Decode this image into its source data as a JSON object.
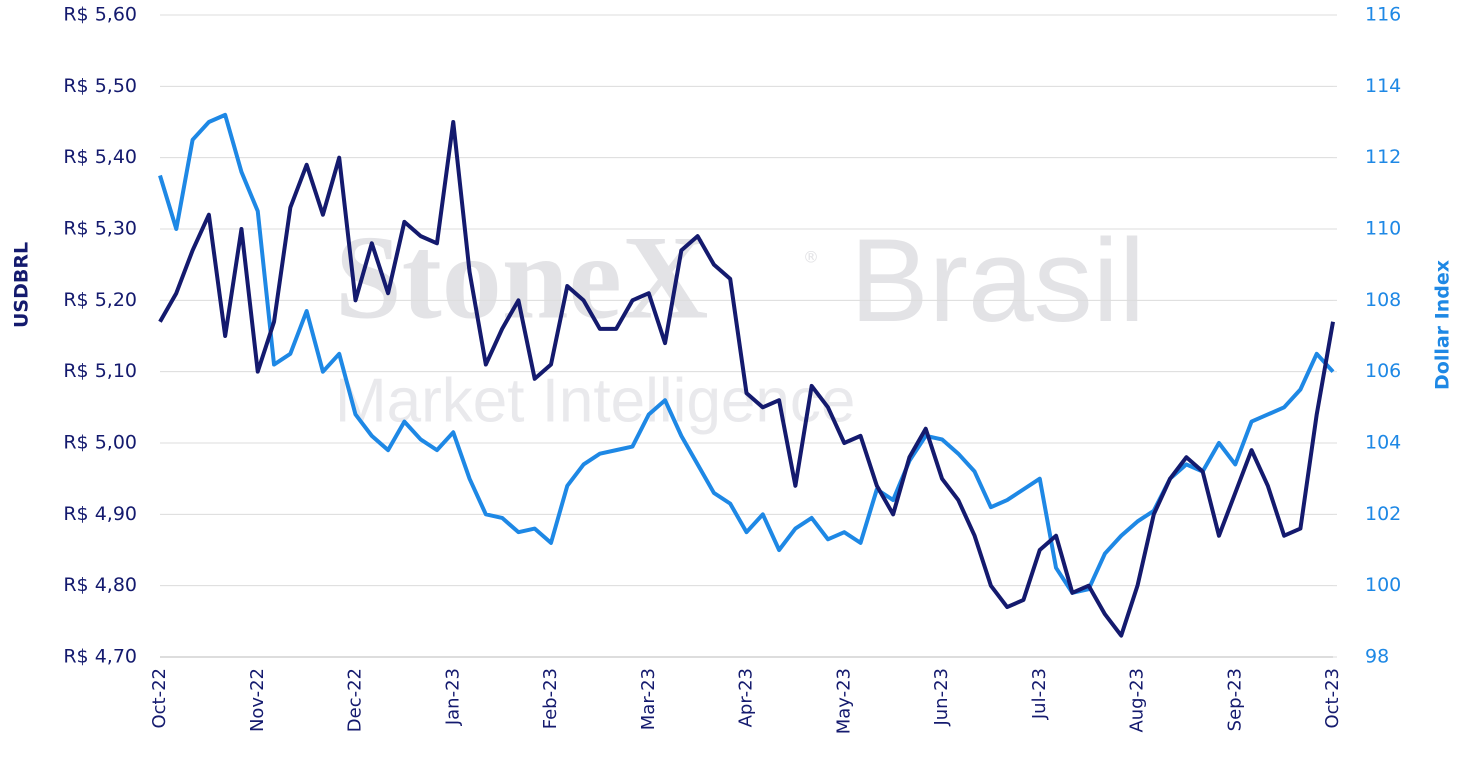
{
  "chart_data": {
    "type": "line",
    "watermark": "StoneX",
    "watermark_mark": "®",
    "watermark_brand": "Brasil",
    "watermark_subtitle": "Market Intelligence",
    "y_label": "USDBRL",
    "y2_label": "Dollar Index",
    "grid": true,
    "categories": [
      "Oct-22",
      null,
      null,
      null,
      null,
      null,
      "Nov-22",
      null,
      null,
      null,
      null,
      null,
      "Dec-22",
      null,
      null,
      null,
      null,
      null,
      "Jan-23",
      null,
      null,
      null,
      null,
      null,
      "Feb-23",
      null,
      null,
      null,
      null,
      null,
      "Mar-23",
      null,
      null,
      null,
      null,
      null,
      "Apr-23",
      null,
      null,
      null,
      null,
      null,
      "May-23",
      null,
      null,
      null,
      null,
      null,
      "Jun-23",
      null,
      null,
      null,
      null,
      null,
      "Jul-23",
      null,
      null,
      null,
      null,
      null,
      "Aug-23",
      null,
      null,
      null,
      null,
      null,
      "Sep-23",
      null,
      null,
      null,
      null,
      null,
      "Oct-23"
    ],
    "ylim": [
      4.7,
      5.6
    ],
    "yticks": [
      {
        "value": 4.7,
        "label": "R$ 4,70"
      },
      {
        "value": 4.8,
        "label": "R$ 4,80"
      },
      {
        "value": 4.9,
        "label": "R$ 4,90"
      },
      {
        "value": 5.0,
        "label": "R$ 5,00"
      },
      {
        "value": 5.1,
        "label": "R$ 5,10"
      },
      {
        "value": 5.2,
        "label": "R$ 5,20"
      },
      {
        "value": 5.3,
        "label": "R$ 5,30"
      },
      {
        "value": 5.4,
        "label": "R$ 5,40"
      },
      {
        "value": 5.5,
        "label": "R$ 5,50"
      },
      {
        "value": 5.6,
        "label": "R$ 5,60"
      }
    ],
    "y2lim": [
      98,
      116
    ],
    "y2ticks": [
      98,
      100,
      102,
      104,
      106,
      108,
      110,
      112,
      114,
      116
    ],
    "series": [
      {
        "name": "USDBRL",
        "color": "#141a6e",
        "axis": "y",
        "values": [
          5.17,
          5.21,
          5.27,
          5.32,
          5.15,
          5.3,
          5.1,
          5.17,
          5.33,
          5.39,
          5.32,
          5.4,
          5.2,
          5.28,
          5.21,
          5.31,
          5.29,
          5.28,
          5.45,
          5.24,
          5.11,
          5.16,
          5.2,
          5.09,
          5.11,
          5.22,
          5.2,
          5.16,
          5.16,
          5.2,
          5.21,
          5.14,
          5.27,
          5.29,
          5.25,
          5.23,
          5.07,
          5.05,
          5.06,
          4.94,
          5.08,
          5.05,
          5.0,
          5.01,
          4.94,
          4.9,
          4.98,
          5.02,
          4.95,
          4.92,
          4.87,
          4.8,
          4.77,
          4.78,
          4.85,
          4.87,
          4.79,
          4.8,
          4.76,
          4.73,
          4.8,
          4.9,
          4.95,
          4.98,
          4.96,
          4.87,
          4.93,
          4.99,
          4.94,
          4.87,
          4.88,
          5.04,
          5.17
        ]
      },
      {
        "name": "Dollar Index",
        "color": "#1e88e5",
        "axis": "y2",
        "values": [
          111.5,
          110,
          112.5,
          113,
          113.2,
          111.6,
          110.5,
          106.2,
          106.5,
          107.7,
          106,
          106.5,
          104.8,
          104.2,
          103.8,
          104.6,
          104.1,
          103.8,
          104.3,
          103,
          102,
          101.9,
          101.5,
          101.6,
          101.2,
          102.8,
          103.4,
          103.7,
          103.8,
          103.9,
          104.8,
          105.2,
          104.2,
          103.4,
          102.6,
          102.3,
          101.5,
          102.0,
          101.0,
          101.6,
          101.9,
          101.3,
          101.5,
          101.2,
          102.7,
          102.4,
          103.5,
          104.2,
          104.1,
          103.7,
          103.2,
          102.2,
          102.4,
          102.7,
          103.0,
          100.5,
          99.8,
          99.9,
          100.9,
          101.4,
          101.8,
          102.1,
          103.0,
          103.4,
          103.2,
          104.0,
          103.4,
          104.6,
          104.8,
          105.0,
          105.5,
          106.5,
          106.0
        ]
      }
    ]
  }
}
